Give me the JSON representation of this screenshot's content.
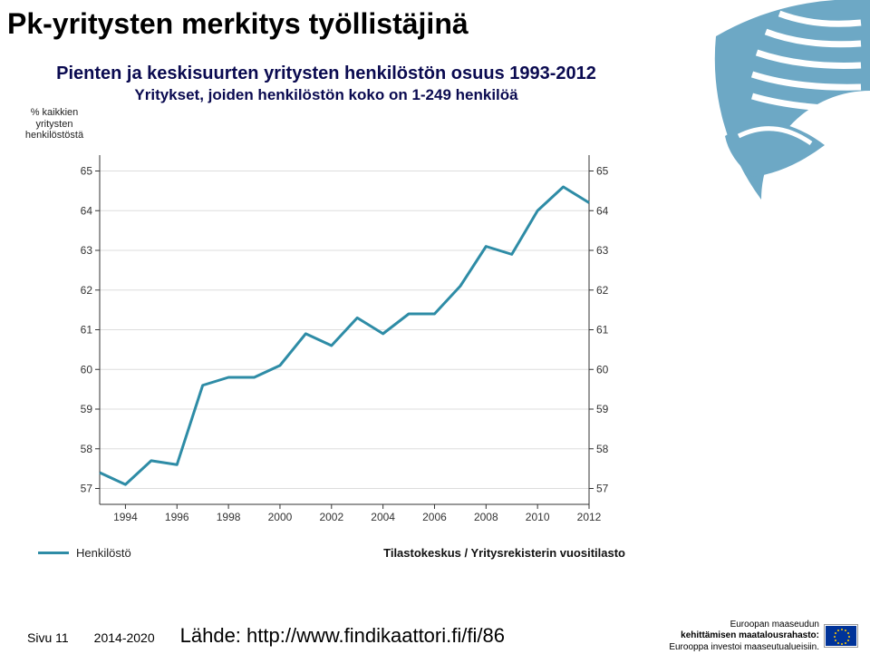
{
  "page_title": "Pk-yritysten merkitys työllistäjinä",
  "chart": {
    "type": "line",
    "title": "Pienten ja keskisuurten yritysten henkilöstön osuus 1993-2012",
    "subtitle": "Yritykset, joiden henkilöstön koko on 1-249 henkilöä",
    "y_axis_title": "% kaikkien yritysten henkilöstöstä",
    "years": [
      1993,
      1994,
      1995,
      1996,
      1997,
      1998,
      1999,
      2000,
      2001,
      2002,
      2003,
      2004,
      2005,
      2006,
      2007,
      2008,
      2009,
      2010,
      2011,
      2012
    ],
    "values": [
      57.4,
      57.1,
      57.7,
      57.6,
      59.6,
      59.8,
      59.8,
      60.1,
      60.9,
      60.6,
      61.3,
      60.9,
      61.4,
      61.4,
      62.1,
      63.1,
      62.9,
      64.0,
      64.6,
      64.2
    ],
    "x_ticks": [
      1994,
      1996,
      1998,
      2000,
      2002,
      2004,
      2006,
      2008,
      2010,
      2012
    ],
    "y_ticks": [
      57,
      58,
      59,
      60,
      61,
      62,
      63,
      64,
      65
    ],
    "xlim": [
      1993,
      2012
    ],
    "ylim": [
      56.6,
      65.4
    ],
    "line_color": "#2e8ca6",
    "line_width": 3,
    "grid_color": "#dddddd",
    "axis_color": "#333333",
    "background_color": "#ffffff",
    "tick_fontsize": 12,
    "title_fontsize": 20,
    "subtitle_fontsize": 17,
    "legend_label": "Henkilöstö",
    "source_label": "Tilastokeskus / Yritysrekisterin vuositilasto"
  },
  "logo": {
    "primary_color": "#6da8c5",
    "accent_color": "#ffffff"
  },
  "footer": {
    "page_label": "Sivu 11",
    "period": "2014-2020",
    "source_prefix": "Lähde: ",
    "source_url": "http://www.findikaattori.fi/fi/86",
    "fund_line1": "Euroopan maaseudun",
    "fund_line2": "kehittämisen maatalousrahasto:",
    "fund_line3": "Eurooppa investoi maaseutualueisiin."
  }
}
